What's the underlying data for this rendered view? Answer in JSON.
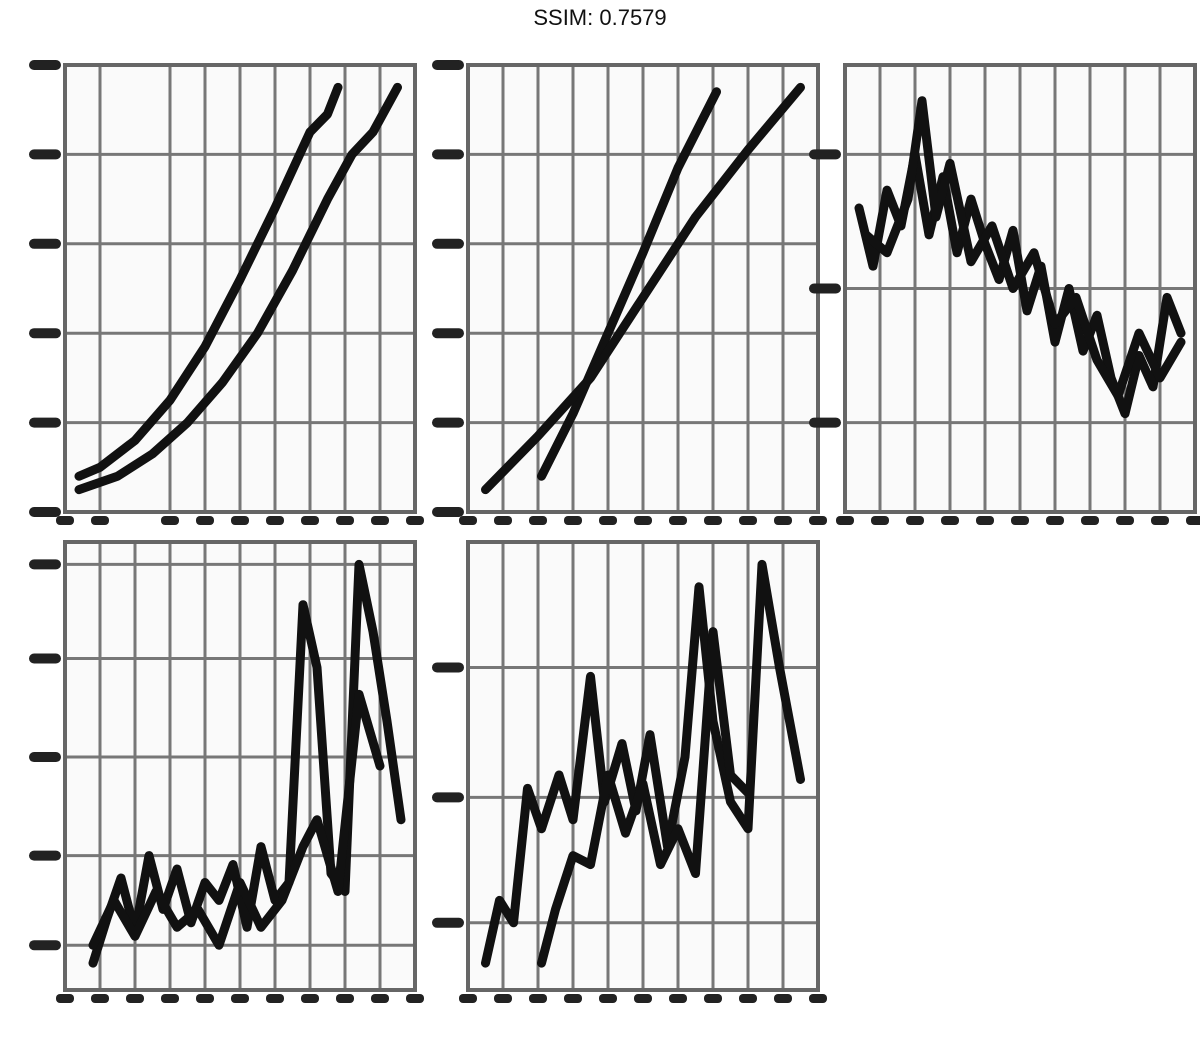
{
  "title": "SSIM: 0.7579",
  "chart_data": [
    {
      "type": "line",
      "xlim": [
        0,
        100
      ],
      "ylim": [
        0,
        100
      ],
      "xticks": [
        0,
        10,
        30,
        40,
        50,
        60,
        70,
        80,
        90,
        100
      ],
      "yticks": [
        0,
        20,
        40,
        60,
        80,
        100
      ],
      "grid": true,
      "series": [
        {
          "color": "#111111",
          "x": [
            4,
            10,
            20,
            30,
            40,
            50,
            60,
            70,
            75,
            78
          ],
          "values": [
            8,
            10,
            16,
            25,
            37,
            52,
            68,
            85,
            89,
            95
          ]
        },
        {
          "color": "#111111",
          "x": [
            4,
            15,
            25,
            35,
            45,
            55,
            65,
            75,
            82,
            88,
            95
          ],
          "values": [
            5,
            8,
            13,
            20,
            29,
            40,
            54,
            70,
            80,
            85,
            95
          ]
        }
      ]
    },
    {
      "type": "line",
      "xlim": [
        0,
        100
      ],
      "ylim": [
        0,
        100
      ],
      "xticks": [
        0,
        10,
        20,
        30,
        40,
        50,
        60,
        70,
        80,
        90,
        100
      ],
      "yticks": [
        0,
        20,
        40,
        60,
        80,
        100
      ],
      "grid": true,
      "series": [
        {
          "color": "#111111",
          "x": [
            21,
            30,
            40,
            50,
            60,
            71
          ],
          "values": [
            8,
            22,
            40,
            58,
            77,
            94
          ]
        },
        {
          "color": "#111111",
          "x": [
            5,
            20,
            35,
            50,
            65,
            80,
            95
          ],
          "values": [
            5,
            17,
            30,
            48,
            66,
            81,
            95
          ]
        }
      ]
    },
    {
      "type": "line",
      "xlim": [
        0,
        100
      ],
      "ylim": [
        0,
        100
      ],
      "xticks": [
        0,
        10,
        20,
        30,
        40,
        50,
        60,
        70,
        80,
        90,
        100
      ],
      "yticks": [
        20,
        50,
        80
      ],
      "grid": true,
      "series": [
        {
          "color": "#111111",
          "x": [
            4,
            8,
            12,
            16,
            20,
            24,
            28,
            32,
            36,
            40,
            44,
            48,
            52,
            56,
            60,
            64,
            68,
            72,
            76,
            80,
            84,
            88,
            92,
            96
          ],
          "values": [
            68,
            55,
            72,
            64,
            80,
            62,
            75,
            58,
            70,
            60,
            52,
            63,
            45,
            55,
            38,
            50,
            36,
            44,
            30,
            22,
            35,
            28,
            48,
            40
          ]
        },
        {
          "color": "#111111",
          "x": [
            6,
            12,
            18,
            22,
            26,
            30,
            36,
            42,
            48,
            54,
            60,
            66,
            72,
            78,
            84,
            90,
            96
          ],
          "values": [
            62,
            58,
            70,
            92,
            66,
            78,
            56,
            64,
            50,
            58,
            42,
            48,
            34,
            26,
            40,
            30,
            38
          ]
        }
      ]
    },
    {
      "type": "line",
      "xlim": [
        0,
        100
      ],
      "ylim": [
        0,
        100
      ],
      "xticks": [
        0,
        10,
        20,
        30,
        40,
        50,
        60,
        70,
        80,
        90,
        100
      ],
      "yticks": [
        10,
        30,
        52,
        74,
        95
      ],
      "grid": true,
      "series": [
        {
          "color": "#111111",
          "x": [
            8,
            12,
            16,
            20,
            24,
            28,
            32,
            36,
            40,
            44,
            48,
            52,
            56,
            60,
            64,
            68,
            72,
            76,
            80,
            84,
            88,
            92,
            96
          ],
          "values": [
            6,
            16,
            25,
            13,
            30,
            18,
            27,
            15,
            24,
            20,
            28,
            14,
            32,
            20,
            24,
            86,
            72,
            26,
            22,
            95,
            80,
            60,
            38
          ]
        },
        {
          "color": "#111111",
          "x": [
            8,
            14,
            20,
            26,
            32,
            38,
            44,
            50,
            56,
            62,
            68,
            72,
            78,
            84,
            90
          ],
          "values": [
            10,
            20,
            12,
            22,
            14,
            18,
            10,
            24,
            14,
            20,
            32,
            38,
            22,
            66,
            50
          ]
        }
      ]
    },
    {
      "type": "line",
      "xlim": [
        0,
        100
      ],
      "ylim": [
        0,
        100
      ],
      "xticks": [
        0,
        10,
        20,
        30,
        40,
        50,
        60,
        70,
        80,
        90,
        100
      ],
      "yticks": [
        15,
        43,
        72
      ],
      "grid": true,
      "series": [
        {
          "color": "#111111",
          "x": [
            5,
            9,
            13,
            17,
            21,
            26,
            30,
            35,
            39,
            44,
            48,
            52,
            57,
            62,
            66,
            70,
            75,
            80,
            84,
            89,
            95
          ],
          "values": [
            6,
            20,
            15,
            45,
            36,
            48,
            38,
            70,
            42,
            55,
            40,
            57,
            32,
            52,
            90,
            60,
            42,
            36,
            95,
            72,
            47
          ]
        },
        {
          "color": "#111111",
          "x": [
            21,
            25,
            30,
            35,
            40,
            45,
            50,
            55,
            60,
            65,
            70,
            75,
            80
          ],
          "values": [
            6,
            18,
            30,
            28,
            48,
            35,
            46,
            28,
            36,
            26,
            80,
            48,
            44
          ]
        }
      ]
    }
  ]
}
